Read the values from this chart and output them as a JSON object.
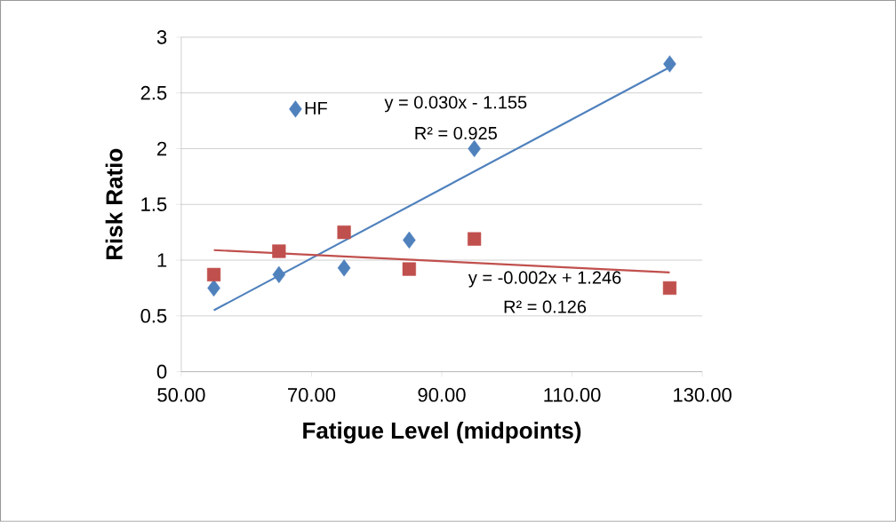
{
  "chart_data": {
    "type": "scatter",
    "xlabel": "Fatigue Level (midpoints)",
    "ylabel": "Risk Ratio",
    "xlim": [
      50,
      130
    ],
    "xticks": [
      {
        "value": 50,
        "label": "50.00"
      },
      {
        "value": 70,
        "label": "70.00"
      },
      {
        "value": 90,
        "label": "90.00"
      },
      {
        "value": 110,
        "label": "110.00"
      },
      {
        "value": 130,
        "label": "130.00"
      }
    ],
    "ylim": [
      0,
      3
    ],
    "yticks": [
      0,
      0.5,
      1,
      1.5,
      2,
      2.5,
      3
    ],
    "grid": "y",
    "legend": "top left",
    "series": [
      {
        "name": "HF",
        "marker": "diamond",
        "color": "#4f81bd",
        "x": [
          55,
          65,
          75,
          85,
          95,
          125
        ],
        "values": [
          0.75,
          0.87,
          0.93,
          1.18,
          2.0,
          2.76
        ]
      },
      {
        "marker": "square",
        "color": "#c0504d",
        "x": [
          55,
          65,
          75,
          85,
          95,
          125
        ],
        "values": [
          0.87,
          1.08,
          1.25,
          0.92,
          1.19,
          0.75
        ]
      },
      {
        "type": "line",
        "marker": "none",
        "color": "#4f81bd",
        "x": [
          55,
          125
        ],
        "values": [
          0.55,
          2.73
        ]
      },
      {
        "type": "line",
        "marker": "none",
        "color": "#c0504d",
        "x": [
          55,
          125
        ],
        "values": [
          1.09,
          0.89
        ]
      }
    ],
    "annotations": [
      "y = 0.030x - 1.155",
      "R² = 0.925",
      "y = -0.002x + 1.246",
      "R² = 0.126"
    ]
  }
}
